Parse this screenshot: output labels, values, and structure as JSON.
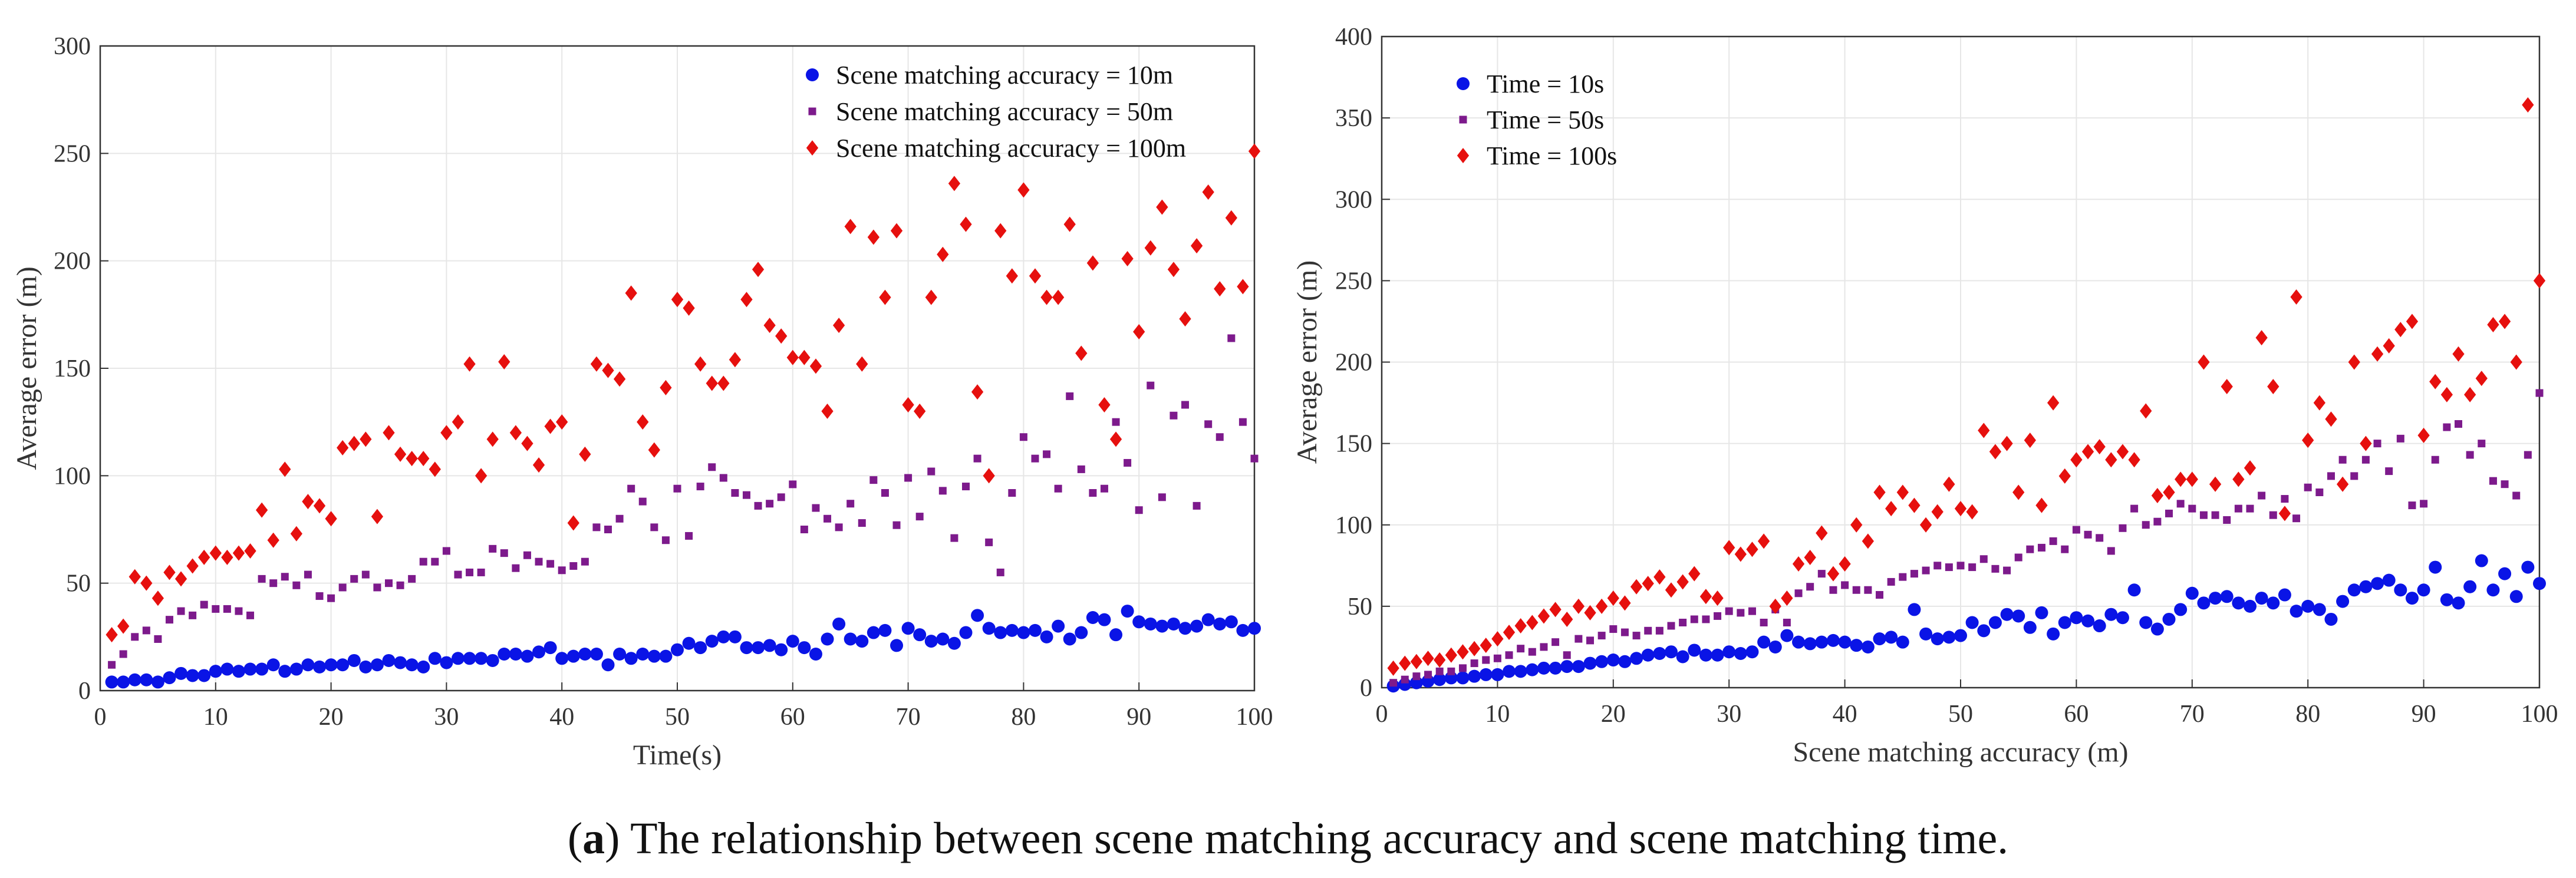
{
  "caption": {
    "label": "(a)",
    "label_letter": "a",
    "text": " The relationship between scene matching accuracy and scene matching time."
  },
  "colors": {
    "blue": "#0a14e6",
    "purple": "#7d1a8c",
    "red": "#e6100e",
    "grid": "#e6e6e6",
    "axis": "#333333"
  },
  "chart_data": [
    {
      "type": "scatter",
      "xlabel": "Time(s)",
      "ylabel": "Average error (m)",
      "xlim": [
        0,
        100
      ],
      "ylim": [
        0,
        300
      ],
      "xticks": [
        0,
        10,
        20,
        30,
        40,
        50,
        60,
        70,
        80,
        90,
        100
      ],
      "yticks": [
        0,
        50,
        100,
        150,
        200,
        250,
        300
      ],
      "grid": true,
      "legend_position": "top-right",
      "x": [
        1,
        2,
        3,
        4,
        5,
        6,
        7,
        8,
        9,
        10,
        11,
        12,
        13,
        14,
        15,
        16,
        17,
        18,
        19,
        20,
        21,
        22,
        23,
        24,
        25,
        26,
        27,
        28,
        29,
        30,
        31,
        32,
        33,
        34,
        35,
        36,
        37,
        38,
        39,
        40,
        41,
        42,
        43,
        44,
        45,
        46,
        47,
        48,
        49,
        50,
        51,
        52,
        53,
        54,
        55,
        56,
        57,
        58,
        59,
        60,
        61,
        62,
        63,
        64,
        65,
        66,
        67,
        68,
        69,
        70,
        71,
        72,
        73,
        74,
        75,
        76,
        77,
        78,
        79,
        80,
        81,
        82,
        83,
        84,
        85,
        86,
        87,
        88,
        89,
        90,
        91,
        92,
        93,
        94,
        95,
        96,
        97,
        98,
        99,
        100
      ],
      "series": [
        {
          "name": "Scene matching accuracy = 10m",
          "marker": "circle",
          "color": "#0a14e6",
          "values": [
            4,
            4,
            5,
            5,
            4,
            6,
            8,
            7,
            7,
            9,
            10,
            9,
            10,
            10,
            12,
            9,
            10,
            12,
            11,
            12,
            12,
            14,
            11,
            12,
            14,
            13,
            12,
            11,
            15,
            13,
            15,
            15,
            15,
            14,
            17,
            17,
            16,
            18,
            20,
            15,
            16,
            17,
            17,
            12,
            17,
            15,
            17,
            16,
            16,
            19,
            22,
            20,
            23,
            25,
            25,
            20,
            20,
            21,
            19,
            23,
            20,
            17,
            24,
            31,
            24,
            23,
            27,
            28,
            21,
            29,
            26,
            23,
            24,
            22,
            27,
            35,
            29,
            27,
            28,
            27,
            28,
            25,
            30,
            24,
            27,
            34,
            33,
            26,
            37,
            32,
            31,
            30,
            31,
            29,
            30,
            33,
            31,
            32,
            28,
            29
          ]
        },
        {
          "name": "Scene matching accuracy = 50m",
          "marker": "square",
          "color": "#7d1a8c",
          "values": [
            12,
            17,
            25,
            28,
            24,
            33,
            37,
            35,
            40,
            38,
            38,
            37,
            35,
            52,
            50,
            53,
            49,
            54,
            44,
            43,
            48,
            52,
            54,
            48,
            50,
            49,
            52,
            60,
            60,
            65,
            54,
            55,
            55,
            66,
            64,
            57,
            63,
            60,
            59,
            56,
            58,
            60,
            76,
            75,
            80,
            94,
            88,
            76,
            70,
            94,
            72,
            95,
            104,
            99,
            92,
            91,
            86,
            87,
            90,
            96,
            75,
            85,
            80,
            76,
            87,
            78,
            98,
            92,
            77,
            99,
            81,
            102,
            93,
            71,
            95,
            108,
            69,
            55,
            92,
            118,
            108,
            110,
            94,
            137,
            103,
            92,
            94,
            125,
            106,
            84,
            142,
            90,
            128,
            133,
            86,
            124,
            118,
            164,
            125,
            108
          ]
        },
        {
          "name": "Scene matching accuracy = 100m",
          "marker": "diamond",
          "color": "#e6100e",
          "values": [
            26,
            30,
            53,
            50,
            43,
            55,
            52,
            58,
            62,
            64,
            62,
            64,
            65,
            84,
            70,
            103,
            73,
            88,
            86,
            80,
            113,
            115,
            117,
            81,
            120,
            110,
            108,
            108,
            103,
            120,
            125,
            152,
            100,
            117,
            153,
            120,
            115,
            105,
            123,
            125,
            78,
            110,
            152,
            149,
            145,
            185,
            125,
            112,
            141,
            182,
            178,
            152,
            143,
            143,
            154,
            182,
            196,
            170,
            165,
            155,
            155,
            151,
            130,
            170,
            216,
            152,
            211,
            183,
            214,
            133,
            130,
            183,
            203,
            236,
            217,
            139,
            100,
            214,
            193,
            233,
            193,
            183,
            183,
            217,
            157,
            199,
            133,
            117,
            201,
            167,
            206,
            225,
            196,
            173,
            207,
            232,
            187,
            220,
            188,
            251
          ]
        }
      ]
    },
    {
      "type": "scatter",
      "xlabel": "Scene matching accuracy (m)",
      "ylabel": "Average error (m)",
      "xlim": [
        0,
        100
      ],
      "ylim": [
        0,
        400
      ],
      "xticks": [
        0,
        10,
        20,
        30,
        40,
        50,
        60,
        70,
        80,
        90,
        100
      ],
      "yticks": [
        0,
        50,
        100,
        150,
        200,
        250,
        300,
        350,
        400
      ],
      "grid": true,
      "legend_position": "top-left",
      "x": [
        1,
        2,
        3,
        4,
        5,
        6,
        7,
        8,
        9,
        10,
        11,
        12,
        13,
        14,
        15,
        16,
        17,
        18,
        19,
        20,
        21,
        22,
        23,
        24,
        25,
        26,
        27,
        28,
        29,
        30,
        31,
        32,
        33,
        34,
        35,
        36,
        37,
        38,
        39,
        40,
        41,
        42,
        43,
        44,
        45,
        46,
        47,
        48,
        49,
        50,
        51,
        52,
        53,
        54,
        55,
        56,
        57,
        58,
        59,
        60,
        61,
        62,
        63,
        64,
        65,
        66,
        67,
        68,
        69,
        70,
        71,
        72,
        73,
        74,
        75,
        76,
        77,
        78,
        79,
        80,
        81,
        82,
        83,
        84,
        85,
        86,
        87,
        88,
        89,
        90,
        91,
        92,
        93,
        94,
        95,
        96,
        97,
        98,
        99,
        100
      ],
      "series": [
        {
          "name": "Time = 10s",
          "marker": "circle",
          "color": "#0a14e6",
          "values": [
            1,
            2,
            3,
            4,
            5,
            6,
            6,
            7,
            8,
            8,
            10,
            10,
            11,
            12,
            12,
            13,
            13,
            15,
            16,
            17,
            16,
            18,
            20,
            21,
            22,
            19,
            23,
            20,
            20,
            22,
            21,
            22,
            28,
            25,
            32,
            28,
            27,
            28,
            29,
            28,
            26,
            25,
            30,
            31,
            28,
            48,
            33,
            30,
            31,
            32,
            40,
            35,
            40,
            45,
            44,
            37,
            46,
            33,
            40,
            43,
            41,
            38,
            45,
            43,
            60,
            40,
            36,
            42,
            48,
            58,
            52,
            55,
            56,
            52,
            50,
            55,
            52,
            57,
            47,
            50,
            48,
            42,
            53,
            60,
            62,
            64,
            66,
            60,
            55,
            60,
            74,
            54,
            52,
            62,
            78,
            60,
            70,
            56,
            74,
            64
          ]
        },
        {
          "name": "Time = 50s",
          "marker": "square",
          "color": "#7d1a8c",
          "values": [
            3,
            5,
            7,
            8,
            10,
            10,
            12,
            15,
            17,
            18,
            20,
            24,
            22,
            25,
            28,
            20,
            30,
            29,
            32,
            36,
            34,
            32,
            35,
            35,
            38,
            40,
            42,
            42,
            44,
            47,
            46,
            47,
            40,
            48,
            40,
            58,
            62,
            70,
            60,
            63,
            60,
            60,
            57,
            65,
            68,
            70,
            72,
            75,
            74,
            75,
            74,
            79,
            73,
            72,
            80,
            85,
            86,
            90,
            85,
            97,
            94,
            92,
            84,
            98,
            110,
            100,
            102,
            107,
            113,
            110,
            106,
            106,
            103,
            110,
            110,
            118,
            106,
            116,
            104,
            123,
            120,
            130,
            140,
            130,
            140,
            150,
            133,
            153,
            112,
            113,
            140,
            160,
            162,
            143,
            150,
            127,
            125,
            118,
            143,
            181
          ]
        },
        {
          "name": "Time = 100s",
          "marker": "diamond",
          "color": "#e6100e",
          "values": [
            12,
            15,
            16,
            18,
            17,
            20,
            22,
            24,
            26,
            30,
            34,
            38,
            40,
            44,
            48,
            42,
            50,
            46,
            50,
            55,
            52,
            62,
            64,
            68,
            60,
            65,
            70,
            56,
            55,
            86,
            82,
            85,
            90,
            50,
            55,
            76,
            80,
            95,
            70,
            76,
            100,
            90,
            120,
            110,
            120,
            112,
            100,
            108,
            125,
            110,
            108,
            158,
            145,
            150,
            120,
            152,
            112,
            175,
            130,
            140,
            145,
            148,
            140,
            145,
            140,
            170,
            118,
            120,
            128,
            128,
            200,
            125,
            185,
            128,
            135,
            215,
            185,
            107,
            240,
            152,
            175,
            165,
            125,
            200,
            150,
            205,
            210,
            220,
            225,
            155,
            188,
            180,
            205,
            180,
            190,
            223,
            225,
            200,
            358,
            250
          ]
        }
      ]
    }
  ]
}
